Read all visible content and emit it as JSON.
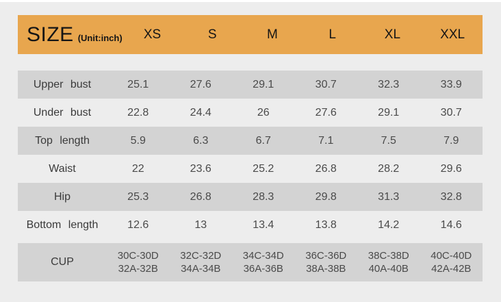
{
  "colors": {
    "page_bg": "#EDEDED",
    "top_strip": "#FFFFFF",
    "header_bg": "#E8A64E",
    "shaded_row_bg": "#D3D3D3"
  },
  "header": {
    "title": "SIZE",
    "unit": "(Unit:inch)",
    "sizes": [
      "XS",
      "S",
      "M",
      "L",
      "XL",
      "XXL"
    ]
  },
  "rows": [
    {
      "label": "Upper bust",
      "values": [
        "25.1",
        "27.6",
        "29.1",
        "30.7",
        "32.3",
        "33.9"
      ]
    },
    {
      "label": "Under bust",
      "values": [
        "22.8",
        "24.4",
        "26",
        "27.6",
        "29.1",
        "30.7"
      ]
    },
    {
      "label": "Top length",
      "values": [
        "5.9",
        "6.3",
        "6.7",
        "7.1",
        "7.5",
        "7.9"
      ]
    },
    {
      "label": "Waist",
      "values": [
        "22",
        "23.6",
        "25.2",
        "26.8",
        "28.2",
        "29.6"
      ]
    },
    {
      "label": "Hip",
      "values": [
        "25.3",
        "26.8",
        "28.3",
        "29.8",
        "31.3",
        "32.8"
      ]
    },
    {
      "label": "Bottom length",
      "values": [
        "12.6",
        "13",
        "13.4",
        "13.8",
        "14.2",
        "14.6"
      ]
    }
  ],
  "cup_row": {
    "label": "CUP",
    "values": [
      {
        "l1": "30C-30D",
        "l2": "32A-32B"
      },
      {
        "l1": "32C-32D",
        "l2": "34A-34B"
      },
      {
        "l1": "34C-34D",
        "l2": "36A-36B"
      },
      {
        "l1": "36C-36D",
        "l2": "38A-38B"
      },
      {
        "l1": "38C-38D",
        "l2": "40A-40B"
      },
      {
        "l1": "40C-40D",
        "l2": "42A-42B"
      }
    ]
  },
  "chart_data": {
    "type": "table",
    "title": "SIZE (Unit:inch)",
    "columns": [
      "SIZE",
      "XS",
      "S",
      "M",
      "L",
      "XL",
      "XXL"
    ],
    "rows": [
      {
        "label": "Upper bust",
        "values": [
          25.1,
          27.6,
          29.1,
          30.7,
          32.3,
          33.9
        ]
      },
      {
        "label": "Under bust",
        "values": [
          22.8,
          24.4,
          26,
          27.6,
          29.1,
          30.7
        ]
      },
      {
        "label": "Top length",
        "values": [
          5.9,
          6.3,
          6.7,
          7.1,
          7.5,
          7.9
        ]
      },
      {
        "label": "Waist",
        "values": [
          22,
          23.6,
          25.2,
          26.8,
          28.2,
          29.6
        ]
      },
      {
        "label": "Hip",
        "values": [
          25.3,
          26.8,
          28.3,
          29.8,
          31.3,
          32.8
        ]
      },
      {
        "label": "Bottom length",
        "values": [
          12.6,
          13,
          13.4,
          13.8,
          14.2,
          14.6
        ]
      },
      {
        "label": "CUP",
        "values": [
          "30C-30D 32A-32B",
          "32C-32D 34A-34B",
          "34C-34D 36A-36B",
          "36C-36D 38A-38B",
          "38C-38D 40A-40B",
          "40C-40D 42A-42B"
        ]
      }
    ],
    "unit": "inch"
  }
}
